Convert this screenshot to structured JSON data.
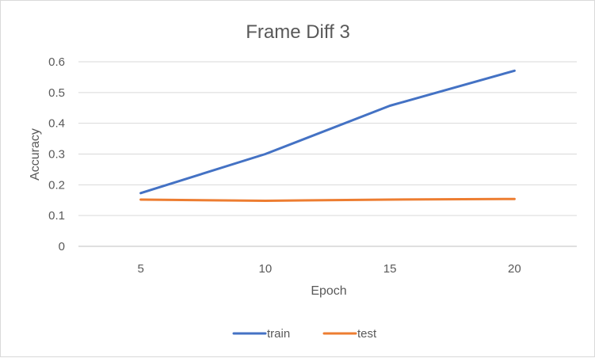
{
  "chart_data": {
    "type": "line",
    "title": "Frame Diff 3",
    "xlabel": "Epoch",
    "ylabel": "Accuracy",
    "categories": [
      "5",
      "10",
      "15",
      "20"
    ],
    "yticks": [
      "0",
      "0.1",
      "0.2",
      "0.3",
      "0.4",
      "0.5",
      "0.6"
    ],
    "ylim": [
      0,
      0.6
    ],
    "grid": true,
    "legend": "bottom",
    "series": [
      {
        "name": "train",
        "color": "#4472c4",
        "values": [
          0.173,
          0.3,
          0.457,
          0.571
        ]
      },
      {
        "name": "test",
        "color": "#ed7d31",
        "values": [
          0.152,
          0.148,
          0.152,
          0.154
        ]
      }
    ]
  }
}
